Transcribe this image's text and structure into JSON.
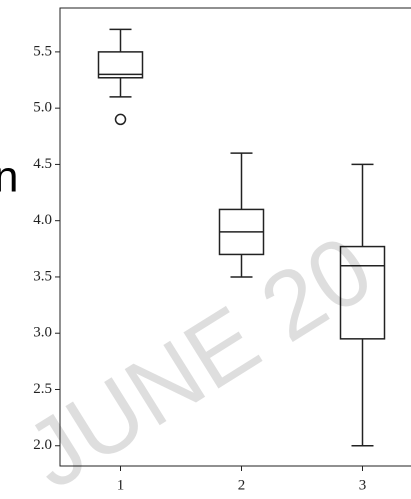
{
  "chart_data": {
    "type": "box",
    "categories": [
      "1",
      "2",
      "3"
    ],
    "whisker_low": [
      5.1,
      3.5,
      2.0
    ],
    "q1": [
      5.27,
      3.7,
      2.95
    ],
    "median": [
      5.3,
      3.9,
      3.6
    ],
    "q3": [
      5.5,
      4.1,
      3.77
    ],
    "whisker_high": [
      5.7,
      4.6,
      4.5
    ],
    "outliers": [
      [
        4.9
      ],
      [],
      []
    ],
    "color": "#222222",
    "xlim": [
      0.5,
      3.5
    ],
    "ylim": [
      1.82,
      5.89
    ],
    "yticks": [
      {
        "value": 2.0,
        "label": "2.0"
      },
      {
        "value": 2.5,
        "label": "2.5"
      },
      {
        "value": 3.0,
        "label": "3.0"
      },
      {
        "value": 3.5,
        "label": "3.5"
      },
      {
        "value": 4.0,
        "label": "4.0"
      },
      {
        "value": 4.5,
        "label": "4.5"
      },
      {
        "value": 5.0,
        "label": "5.0"
      },
      {
        "value": 5.5,
        "label": "5.5"
      }
    ],
    "grid": false,
    "watermark": "JUNE 20",
    "side_text": "n"
  }
}
